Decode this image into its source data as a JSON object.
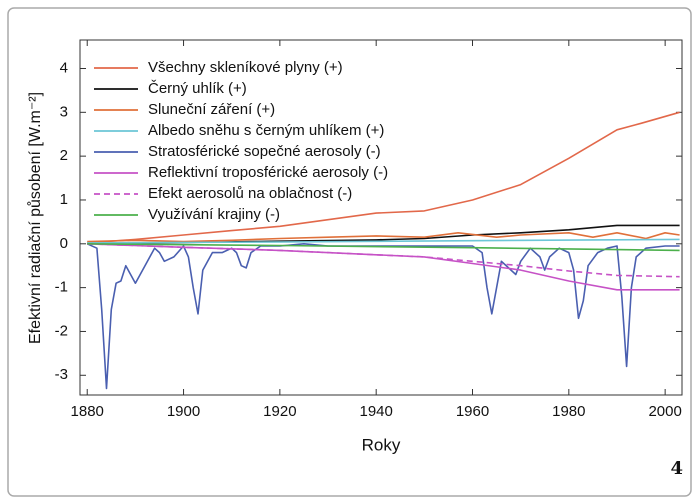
{
  "chart_data": {
    "type": "line",
    "xlabel": "Roky",
    "ylabel": "Efektivní radiační působení [W.m⁻²]",
    "page_number": "4",
    "xlim": [
      1878.5,
      2003.5
    ],
    "ylim": [
      -3.45,
      4.65
    ],
    "xticks": [
      1880,
      1900,
      1920,
      1940,
      1960,
      1980,
      2000
    ],
    "yticks": [
      -3,
      -2,
      -1,
      0,
      1,
      2,
      3,
      4
    ],
    "legend": "upper-left",
    "series": [
      {
        "name": "Všechny skleníkové plyny (+)",
        "color": "#e2684a",
        "style": "solid",
        "x": [
          1880,
          1890,
          1900,
          1910,
          1920,
          1930,
          1940,
          1950,
          1960,
          1970,
          1980,
          1990,
          1995,
          2003
        ],
        "values": [
          0.02,
          0.1,
          0.2,
          0.3,
          0.4,
          0.55,
          0.7,
          0.75,
          1.0,
          1.35,
          1.95,
          2.6,
          2.75,
          3.0
        ]
      },
      {
        "name": "Černý uhlík (+)",
        "color": "#111111",
        "style": "solid",
        "x": [
          1880,
          1900,
          1920,
          1940,
          1950,
          1960,
          1970,
          1980,
          1990,
          2003
        ],
        "values": [
          0.0,
          0.03,
          0.06,
          0.09,
          0.12,
          0.2,
          0.25,
          0.32,
          0.42,
          0.42
        ]
      },
      {
        "name": "Sluneční záření (+)",
        "color": "#e0703a",
        "style": "solid",
        "x": [
          1880,
          1890,
          1900,
          1910,
          1920,
          1930,
          1940,
          1950,
          1957,
          1965,
          1970,
          1980,
          1985,
          1990,
          1996,
          2000,
          2003
        ],
        "values": [
          0.05,
          0.08,
          0.05,
          0.08,
          0.12,
          0.15,
          0.18,
          0.15,
          0.25,
          0.15,
          0.2,
          0.25,
          0.15,
          0.25,
          0.12,
          0.25,
          0.2
        ]
      },
      {
        "name": "Albedo sněhu s černým uhlíkem (+)",
        "color": "#6cc6d6",
        "style": "solid",
        "x": [
          1880,
          1920,
          1960,
          2003
        ],
        "values": [
          0.02,
          0.04,
          0.07,
          0.1
        ]
      },
      {
        "name": "Stratosférické sopečné aerosoly (-)",
        "color": "#4a5fb0",
        "style": "solid",
        "x": [
          1880,
          1882,
          1883,
          1884,
          1885,
          1886,
          1887,
          1888,
          1889,
          1890,
          1892,
          1894,
          1895,
          1896,
          1898,
          1900,
          1901,
          1902,
          1903,
          1904,
          1906,
          1908,
          1910,
          1911,
          1912,
          1913,
          1914,
          1916,
          1920,
          1925,
          1930,
          1935,
          1940,
          1950,
          1955,
          1960,
          1962,
          1963,
          1964,
          1965,
          1966,
          1968,
          1969,
          1970,
          1972,
          1974,
          1975,
          1976,
          1978,
          1980,
          1981,
          1982,
          1983,
          1984,
          1986,
          1988,
          1990,
          1991,
          1992,
          1993,
          1994,
          1996,
          2000,
          2003
        ],
        "values": [
          0,
          -0.1,
          -1.5,
          -3.3,
          -1.5,
          -0.9,
          -0.85,
          -0.5,
          -0.7,
          -0.9,
          -0.5,
          -0.1,
          -0.2,
          -0.4,
          -0.3,
          -0.05,
          -0.3,
          -1.0,
          -1.6,
          -0.6,
          -0.2,
          -0.2,
          -0.1,
          -0.2,
          -0.5,
          -0.55,
          -0.2,
          -0.05,
          -0.05,
          0,
          -0.05,
          -0.05,
          -0.05,
          -0.05,
          -0.05,
          -0.05,
          -0.2,
          -1.0,
          -1.6,
          -1.0,
          -0.4,
          -0.6,
          -0.7,
          -0.4,
          -0.1,
          -0.3,
          -0.6,
          -0.3,
          -0.1,
          -0.2,
          -0.6,
          -1.7,
          -1.3,
          -0.5,
          -0.2,
          -0.1,
          -0.05,
          -1.2,
          -2.8,
          -1.0,
          -0.3,
          -0.1,
          -0.05,
          -0.05
        ]
      },
      {
        "name": "Reflektivní troposférické aerosoly (-)",
        "color": "#c652c6",
        "style": "solid",
        "x": [
          1880,
          1900,
          1920,
          1940,
          1950,
          1960,
          1970,
          1980,
          1990,
          2003
        ],
        "values": [
          0,
          -0.08,
          -0.15,
          -0.25,
          -0.3,
          -0.45,
          -0.6,
          -0.85,
          -1.05,
          -1.05
        ]
      },
      {
        "name": "Efekt aerosolů na oblačnost (-)",
        "color": "#c652c6",
        "style": "dashed",
        "x": [
          1880,
          1900,
          1920,
          1940,
          1950,
          1960,
          1970,
          1980,
          1990,
          2003
        ],
        "values": [
          0,
          -0.08,
          -0.15,
          -0.25,
          -0.3,
          -0.4,
          -0.5,
          -0.62,
          -0.72,
          -0.75
        ]
      },
      {
        "name": "Využívání krajiny (-)",
        "color": "#4cb04c",
        "style": "solid",
        "x": [
          1880,
          1920,
          1960,
          2003
        ],
        "values": [
          0,
          -0.04,
          -0.09,
          -0.15
        ]
      }
    ]
  }
}
